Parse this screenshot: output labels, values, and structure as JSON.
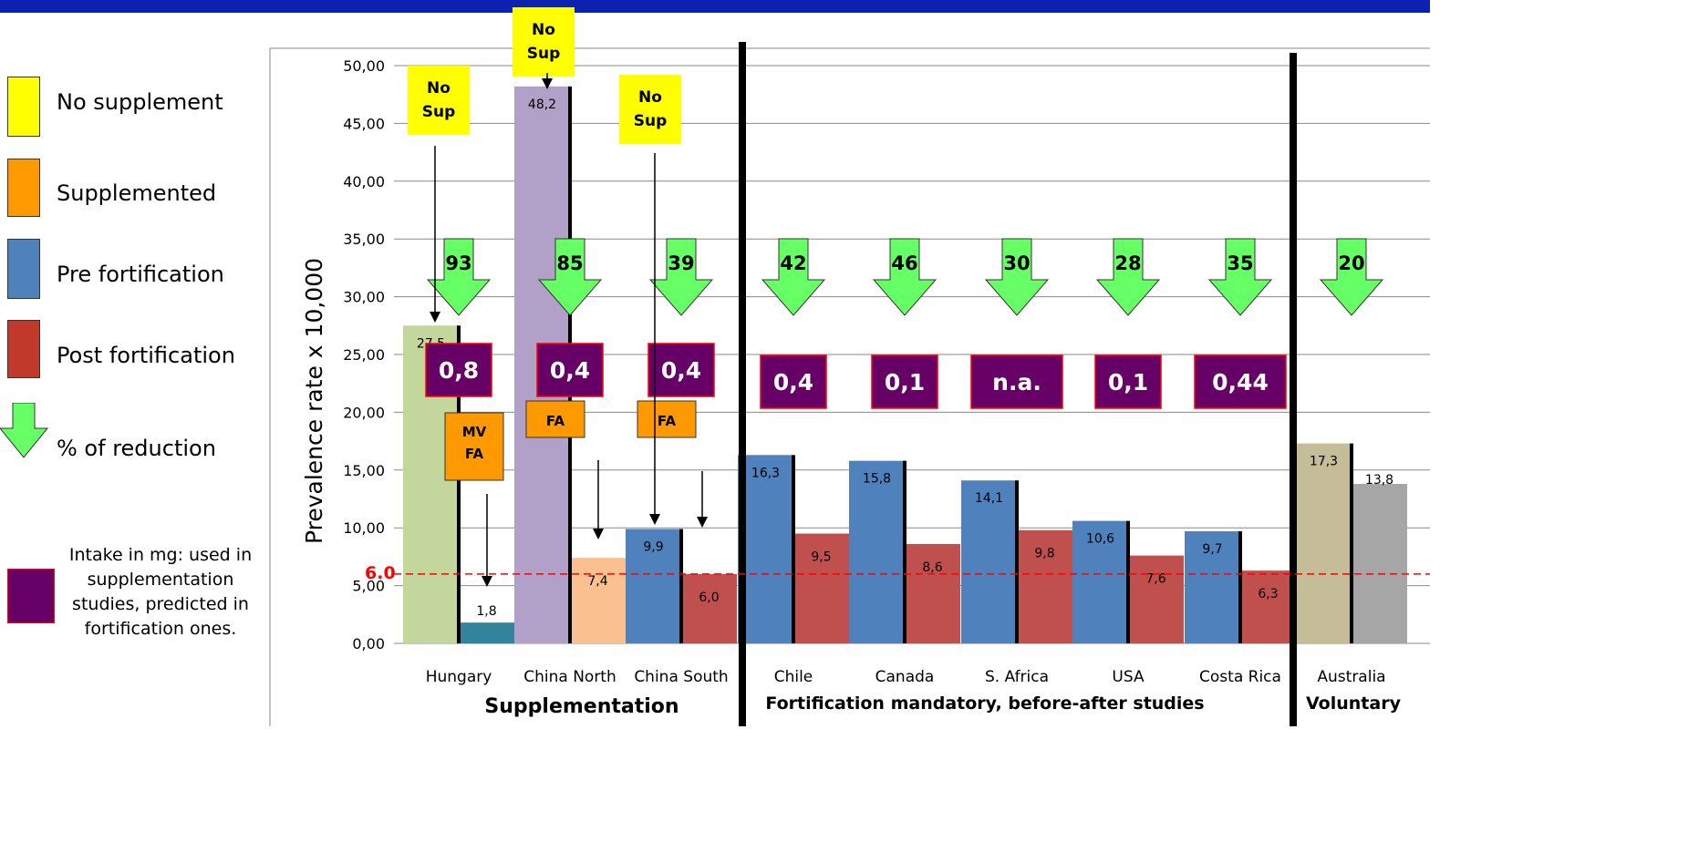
{
  "colors": {
    "top_bar": "#0b22b0",
    "no_supplement": "#ffff00",
    "supplemented": "#ff9900",
    "pre_fortification": "#4f81bd",
    "post_fortification": "#c0504d",
    "intake_box": "#660066",
    "reduction_arrow": "#66ff66",
    "threshold_line": "#ff0000"
  },
  "legend": {
    "items": [
      {
        "label": "No supplement",
        "color": "#ffff00"
      },
      {
        "label": "Supplemented",
        "color": "#ff9900"
      },
      {
        "label": "Pre  fortification",
        "color": "#4f81bd"
      },
      {
        "label": "Post  fortification",
        "color": "#c0392b"
      }
    ],
    "reduction_label": "% of reduction",
    "intake_label": "Intake in mg:  used in supplementation studies, predicted in fortification ones."
  },
  "chart_data": {
    "type": "bar",
    "ylabel": "Prevalence rate x 10,000",
    "ylim": [
      0,
      50
    ],
    "yticks": [
      "0,00",
      "5,00",
      "10,00",
      "15,00",
      "20,00",
      "25,00",
      "30,00",
      "35,00",
      "40,00",
      "45,00",
      "50,00"
    ],
    "grid": true,
    "threshold": {
      "value": 6.0,
      "label": "6.0"
    },
    "groups": [
      {
        "label": "Hungary",
        "bars": [
          {
            "value": 27.5,
            "label": "27,5",
            "color": "#c3d69b"
          },
          {
            "value": 1.8,
            "label": "1,8",
            "color": "#31849b"
          }
        ],
        "reduction": "93",
        "intake": "0,8",
        "supplement_label": "MV\nFA",
        "pre_label": "No\nSup"
      },
      {
        "label": "China North",
        "bars": [
          {
            "value": 48.2,
            "label": "48,2",
            "color": "#b1a0c7"
          },
          {
            "value": 7.4,
            "label": "7,4",
            "color": "#fac090"
          }
        ],
        "reduction": "85",
        "intake": "0,4",
        "supplement_label": "FA",
        "pre_label": "No\nSup"
      },
      {
        "label": "China South",
        "bars": [
          {
            "value": 9.9,
            "label": "9,9",
            "color": "#4f81bd"
          },
          {
            "value": 6.0,
            "label": "6,0",
            "color": "#c0504d"
          }
        ],
        "reduction": "39",
        "intake": "0,4",
        "supplement_label": "FA",
        "pre_label": "No\nSup"
      },
      {
        "label": "Chile",
        "bars": [
          {
            "value": 16.3,
            "label": "16,3",
            "color": "#4f81bd"
          },
          {
            "value": 9.5,
            "label": "9,5",
            "color": "#c0504d"
          }
        ],
        "reduction": "42",
        "intake": "0,4"
      },
      {
        "label": "Canada",
        "bars": [
          {
            "value": 15.8,
            "label": "15,8",
            "color": "#4f81bd"
          },
          {
            "value": 8.6,
            "label": "8,6",
            "color": "#c0504d"
          }
        ],
        "reduction": "46",
        "intake": "0,1"
      },
      {
        "label": "S. Africa",
        "bars": [
          {
            "value": 14.1,
            "label": "14,1",
            "color": "#4f81bd"
          },
          {
            "value": 9.8,
            "label": "9,8",
            "color": "#c0504d"
          }
        ],
        "reduction": "30",
        "intake": "n.a."
      },
      {
        "label": "USA",
        "bars": [
          {
            "value": 10.6,
            "label": "10,6",
            "color": "#4f81bd"
          },
          {
            "value": 7.6,
            "label": "7,6",
            "color": "#c0504d"
          }
        ],
        "reduction": "28",
        "intake": "0,1"
      },
      {
        "label": "Costa Rica",
        "bars": [
          {
            "value": 9.7,
            "label": "9,7",
            "color": "#4f81bd"
          },
          {
            "value": 6.3,
            "label": "6,3",
            "color": "#c0504d"
          }
        ],
        "reduction": "35",
        "intake": "0,44"
      },
      {
        "label": "Australia",
        "bars": [
          {
            "value": 17.3,
            "label": "17,3",
            "color": "#c4bd97"
          },
          {
            "value": 13.8,
            "label": "13,8",
            "color": "#a6a6a6"
          }
        ],
        "reduction": "20",
        "intake": ""
      }
    ],
    "sections": [
      "Supplementation",
      "Fortification mandatory, before-after studies",
      "Voluntary"
    ]
  }
}
